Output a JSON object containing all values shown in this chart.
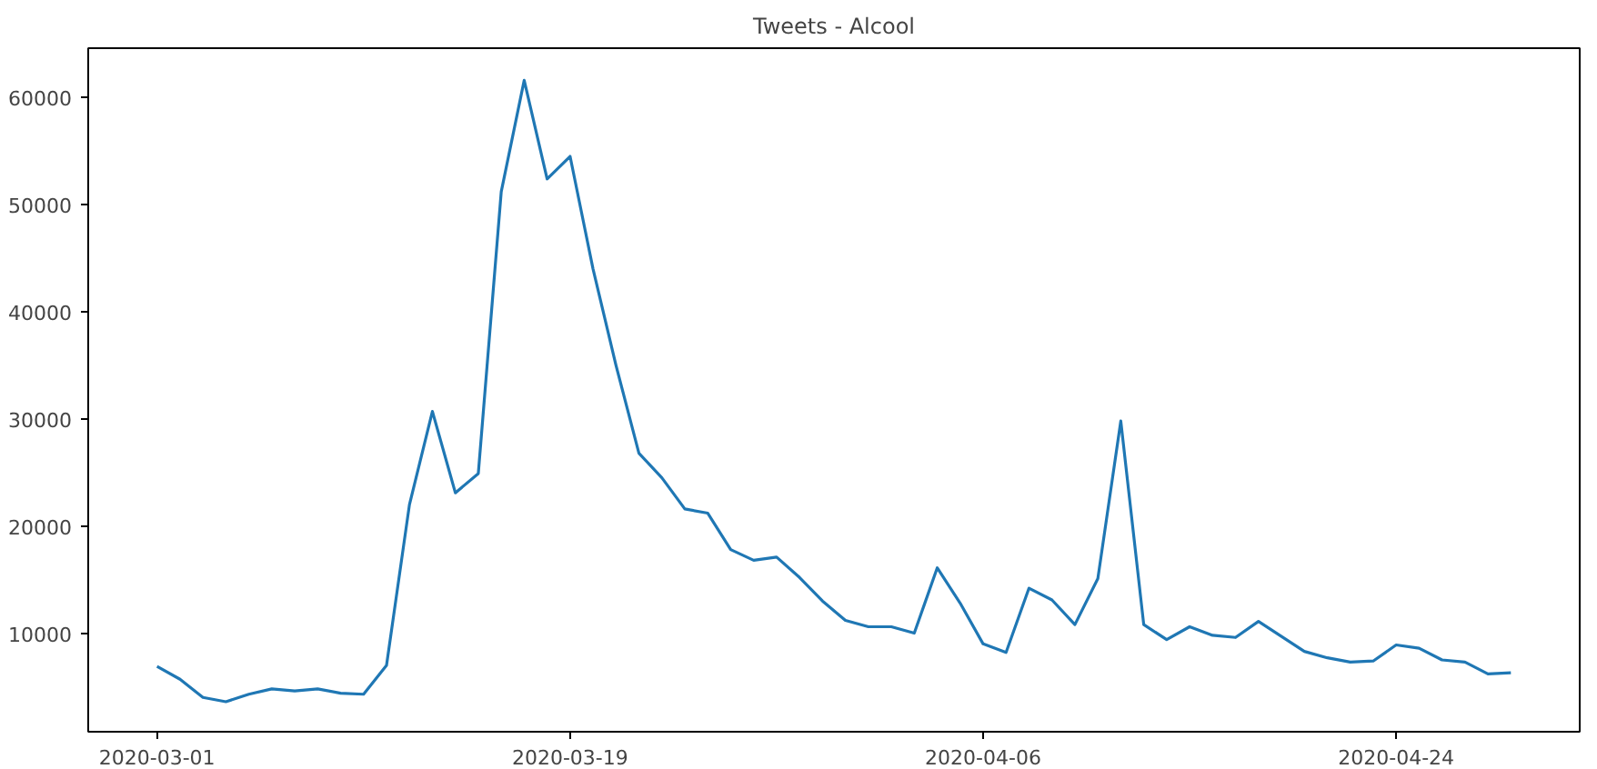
{
  "chart_data": {
    "type": "line",
    "title": "Tweets - Alcool",
    "x": [
      "2020-03-01",
      "2020-03-02",
      "2020-03-03",
      "2020-03-04",
      "2020-03-05",
      "2020-03-06",
      "2020-03-07",
      "2020-03-08",
      "2020-03-09",
      "2020-03-10",
      "2020-03-11",
      "2020-03-12",
      "2020-03-13",
      "2020-03-14",
      "2020-03-15",
      "2020-03-16",
      "2020-03-17",
      "2020-03-18",
      "2020-03-19",
      "2020-03-20",
      "2020-03-21",
      "2020-03-22",
      "2020-03-23",
      "2020-03-24",
      "2020-03-25",
      "2020-03-26",
      "2020-03-27",
      "2020-03-28",
      "2020-03-29",
      "2020-03-30",
      "2020-03-31",
      "2020-04-01",
      "2020-04-02",
      "2020-04-03",
      "2020-04-04",
      "2020-04-05",
      "2020-04-06",
      "2020-04-07",
      "2020-04-08",
      "2020-04-09",
      "2020-04-10",
      "2020-04-11",
      "2020-04-12",
      "2020-04-13",
      "2020-04-14",
      "2020-04-15",
      "2020-04-16",
      "2020-04-17",
      "2020-04-18",
      "2020-04-19",
      "2020-04-20",
      "2020-04-21",
      "2020-04-22",
      "2020-04-23",
      "2020-04-24",
      "2020-04-25",
      "2020-04-26",
      "2020-04-27",
      "2020-04-28",
      "2020-04-29"
    ],
    "series": [
      {
        "color": "#1f77b4",
        "values": [
          6900,
          5700,
          4000,
          3600,
          4300,
          4800,
          4600,
          4800,
          4400,
          4300,
          7000,
          22000,
          30700,
          23100,
          24900,
          51200,
          61600,
          52400,
          54500,
          44000,
          35000,
          26800,
          24500,
          21600,
          21200,
          17800,
          16800,
          17100,
          15200,
          13000,
          11200,
          10600,
          10600,
          10000,
          16100,
          12800,
          9000,
          8200,
          14200,
          13100,
          10800,
          15100,
          29800,
          10800,
          9400,
          10600,
          9800,
          9600,
          11100,
          9700,
          8300,
          7700,
          7300,
          7400,
          8900,
          8600,
          7500,
          7300,
          6200,
          6300
        ]
      }
    ],
    "xlim": [
      "2020-02-27",
      "2020-05-02"
    ],
    "xticks": [
      "2020-03-01",
      "2020-03-19",
      "2020-04-06",
      "2020-04-24"
    ],
    "ylim": [
      800,
      64600
    ],
    "yticks": [
      10000,
      20000,
      30000,
      40000,
      50000,
      60000
    ],
    "grid": false,
    "marker": "none",
    "line_style": "solid"
  }
}
